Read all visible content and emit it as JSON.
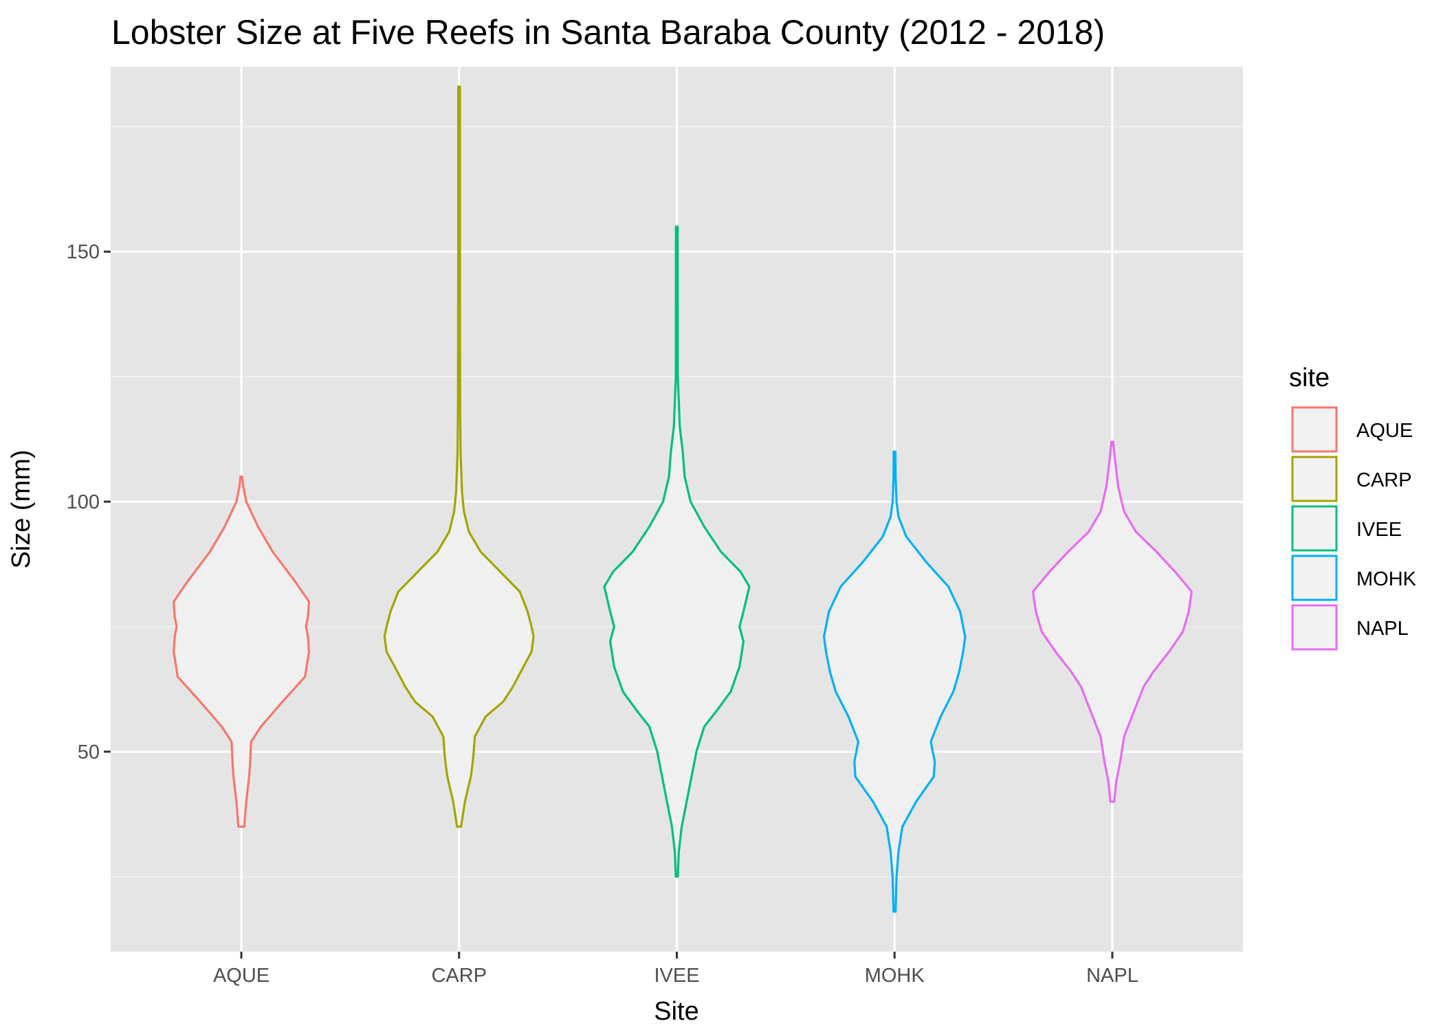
{
  "chart_data": {
    "type": "violin",
    "title": "Lobster Size at Five Reefs in Santa Baraba County (2012 - 2018)",
    "xlabel": "Site",
    "ylabel": "Size (mm)",
    "categories": [
      "AQUE",
      "CARP",
      "IVEE",
      "MOHK",
      "NAPL"
    ],
    "ylim": [
      10,
      187
    ],
    "yticks": [
      50,
      100,
      150
    ],
    "grid": true,
    "legend": {
      "title": "site",
      "placement": "right"
    },
    "series": [
      {
        "name": "AQUE",
        "color": "#F8766D",
        "min": 35,
        "max": 105,
        "density": [
          [
            35,
            0.03
          ],
          [
            40,
            0.05
          ],
          [
            45,
            0.08
          ],
          [
            48,
            0.09
          ],
          [
            52,
            0.1
          ],
          [
            55,
            0.2
          ],
          [
            60,
            0.42
          ],
          [
            65,
            0.65
          ],
          [
            70,
            0.69
          ],
          [
            73,
            0.68
          ],
          [
            75,
            0.66
          ],
          [
            77,
            0.68
          ],
          [
            80,
            0.69
          ],
          [
            84,
            0.55
          ],
          [
            90,
            0.32
          ],
          [
            95,
            0.17
          ],
          [
            100,
            0.05
          ],
          [
            103,
            0.02
          ],
          [
            105,
            0.0
          ]
        ]
      },
      {
        "name": "CARP",
        "color": "#A3A500",
        "min": 35,
        "max": 183,
        "density": [
          [
            35,
            0.02
          ],
          [
            40,
            0.06
          ],
          [
            45,
            0.12
          ],
          [
            48,
            0.14
          ],
          [
            50,
            0.15
          ],
          [
            53,
            0.16
          ],
          [
            57,
            0.27
          ],
          [
            60,
            0.45
          ],
          [
            63,
            0.55
          ],
          [
            66,
            0.63
          ],
          [
            70,
            0.74
          ],
          [
            73,
            0.76
          ],
          [
            75,
            0.74
          ],
          [
            78,
            0.7
          ],
          [
            82,
            0.62
          ],
          [
            86,
            0.42
          ],
          [
            90,
            0.22
          ],
          [
            94,
            0.1
          ],
          [
            98,
            0.05
          ],
          [
            102,
            0.03
          ],
          [
            110,
            0.015
          ],
          [
            120,
            0.01
          ],
          [
            150,
            0.006
          ],
          [
            183,
            0.0
          ]
        ]
      },
      {
        "name": "IVEE",
        "color": "#00BF7D",
        "min": 25,
        "max": 155,
        "density": [
          [
            25,
            0.01
          ],
          [
            30,
            0.02
          ],
          [
            35,
            0.05
          ],
          [
            40,
            0.1
          ],
          [
            45,
            0.15
          ],
          [
            50,
            0.2
          ],
          [
            55,
            0.28
          ],
          [
            58,
            0.4
          ],
          [
            62,
            0.55
          ],
          [
            67,
            0.64
          ],
          [
            72,
            0.68
          ],
          [
            75,
            0.64
          ],
          [
            78,
            0.68
          ],
          [
            83,
            0.74
          ],
          [
            86,
            0.65
          ],
          [
            90,
            0.45
          ],
          [
            95,
            0.28
          ],
          [
            100,
            0.14
          ],
          [
            105,
            0.08
          ],
          [
            110,
            0.06
          ],
          [
            115,
            0.03
          ],
          [
            125,
            0.01
          ],
          [
            155,
            0.0
          ]
        ]
      },
      {
        "name": "MOHK",
        "color": "#00B0F6",
        "min": 18,
        "max": 110,
        "density": [
          [
            18,
            0.01
          ],
          [
            25,
            0.02
          ],
          [
            30,
            0.04
          ],
          [
            35,
            0.08
          ],
          [
            40,
            0.22
          ],
          [
            45,
            0.4
          ],
          [
            48,
            0.41
          ],
          [
            52,
            0.37
          ],
          [
            57,
            0.47
          ],
          [
            62,
            0.6
          ],
          [
            66,
            0.66
          ],
          [
            70,
            0.7
          ],
          [
            73,
            0.72
          ],
          [
            78,
            0.67
          ],
          [
            83,
            0.55
          ],
          [
            88,
            0.32
          ],
          [
            93,
            0.12
          ],
          [
            97,
            0.04
          ],
          [
            100,
            0.02
          ],
          [
            105,
            0.01
          ],
          [
            110,
            0.0
          ]
        ]
      },
      {
        "name": "NAPL",
        "color": "#E76BF3",
        "min": 40,
        "max": 112,
        "density": [
          [
            40,
            0.02
          ],
          [
            44,
            0.04
          ],
          [
            48,
            0.08
          ],
          [
            53,
            0.12
          ],
          [
            58,
            0.22
          ],
          [
            63,
            0.32
          ],
          [
            66,
            0.42
          ],
          [
            70,
            0.58
          ],
          [
            74,
            0.72
          ],
          [
            78,
            0.78
          ],
          [
            82,
            0.81
          ],
          [
            86,
            0.64
          ],
          [
            90,
            0.45
          ],
          [
            94,
            0.24
          ],
          [
            98,
            0.12
          ],
          [
            103,
            0.06
          ],
          [
            108,
            0.03
          ],
          [
            112,
            0.0
          ]
        ]
      }
    ]
  }
}
